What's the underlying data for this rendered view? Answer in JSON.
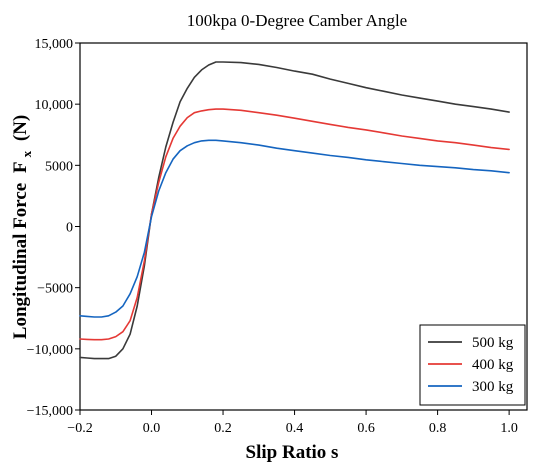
{
  "chart_data": {
    "type": "line",
    "title": "100kpa  0-Degree Camber Angle",
    "xlabel": "Slip Ratio s",
    "ylabel": "Longitudinal Force",
    "ylabel_symbol": "F",
    "ylabel_subscript": "x",
    "ylabel_unit": "(N)",
    "xlim": [
      -0.2,
      1.05
    ],
    "ylim": [
      -15000,
      15000
    ],
    "xticks": [
      -0.2,
      0.0,
      0.2,
      0.4,
      0.6,
      0.8,
      1.0
    ],
    "xtick_labels": [
      "−0.2",
      "0.0",
      "0.2",
      "0.4",
      "0.6",
      "0.8",
      "1.0"
    ],
    "yticks": [
      -15000,
      -10000,
      -5000,
      0,
      5000,
      10000,
      15000
    ],
    "ytick_labels": [
      "−15,000",
      "−10,000",
      "−5000",
      "0",
      "5000",
      "10,000",
      "15,000"
    ],
    "grid": false,
    "legend_position": "bottom-right",
    "series": [
      {
        "name": "500 kg",
        "color": "#3a3a3a",
        "x": [
          -0.2,
          -0.18,
          -0.16,
          -0.14,
          -0.12,
          -0.1,
          -0.08,
          -0.06,
          -0.04,
          -0.02,
          0.0,
          0.02,
          0.04,
          0.06,
          0.08,
          0.1,
          0.12,
          0.14,
          0.16,
          0.18,
          0.2,
          0.25,
          0.3,
          0.35,
          0.4,
          0.45,
          0.5,
          0.55,
          0.6,
          0.65,
          0.7,
          0.75,
          0.8,
          0.85,
          0.9,
          0.95,
          1.0
        ],
        "y": [
          -10700,
          -10750,
          -10800,
          -10800,
          -10800,
          -10600,
          -10000,
          -8800,
          -6500,
          -3200,
          1000,
          4000,
          6500,
          8500,
          10200,
          11300,
          12200,
          12800,
          13200,
          13450,
          13450,
          13400,
          13250,
          13000,
          12700,
          12450,
          12050,
          11700,
          11350,
          11050,
          10750,
          10500,
          10250,
          10000,
          9800,
          9600,
          9350
        ]
      },
      {
        "name": "400 kg",
        "color": "#e53935",
        "x": [
          -0.2,
          -0.18,
          -0.16,
          -0.14,
          -0.12,
          -0.1,
          -0.08,
          -0.06,
          -0.04,
          -0.02,
          0.0,
          0.02,
          0.04,
          0.06,
          0.08,
          0.1,
          0.12,
          0.14,
          0.16,
          0.18,
          0.2,
          0.25,
          0.3,
          0.35,
          0.4,
          0.45,
          0.5,
          0.55,
          0.6,
          0.65,
          0.7,
          0.75,
          0.8,
          0.85,
          0.9,
          0.95,
          1.0
        ],
        "y": [
          -9200,
          -9230,
          -9250,
          -9250,
          -9200,
          -9000,
          -8600,
          -7700,
          -5800,
          -2800,
          1000,
          3600,
          5700,
          7200,
          8200,
          8900,
          9300,
          9450,
          9550,
          9600,
          9600,
          9500,
          9300,
          9100,
          8850,
          8600,
          8350,
          8100,
          7900,
          7650,
          7400,
          7200,
          7000,
          6850,
          6650,
          6450,
          6300
        ]
      },
      {
        "name": "300 kg",
        "color": "#1565c0",
        "x": [
          -0.2,
          -0.18,
          -0.16,
          -0.14,
          -0.12,
          -0.1,
          -0.08,
          -0.06,
          -0.04,
          -0.02,
          0.0,
          0.02,
          0.04,
          0.06,
          0.08,
          0.1,
          0.12,
          0.14,
          0.16,
          0.18,
          0.2,
          0.25,
          0.3,
          0.35,
          0.4,
          0.45,
          0.5,
          0.55,
          0.6,
          0.65,
          0.7,
          0.75,
          0.8,
          0.85,
          0.9,
          0.95,
          1.0
        ],
        "y": [
          -7300,
          -7350,
          -7400,
          -7400,
          -7300,
          -7000,
          -6500,
          -5500,
          -4100,
          -2100,
          800,
          2900,
          4400,
          5500,
          6200,
          6600,
          6850,
          7000,
          7050,
          7050,
          7000,
          6850,
          6650,
          6400,
          6200,
          6000,
          5800,
          5650,
          5450,
          5300,
          5150,
          5000,
          4900,
          4800,
          4650,
          4550,
          4400
        ]
      }
    ]
  }
}
